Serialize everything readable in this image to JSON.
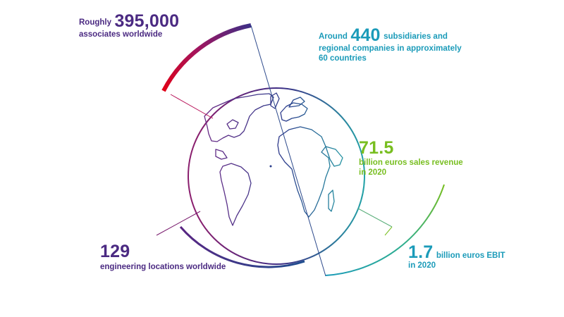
{
  "stats": {
    "associates": {
      "prefix": "Roughly",
      "value": "395,000",
      "caption": "associates worldwide"
    },
    "subsidiaries": {
      "prefix": "Around",
      "value": "440",
      "suffix": "subsidiaries and",
      "line2": "regional companies in approximately",
      "line3": "60 countries"
    },
    "revenue": {
      "value": "71.5",
      "line1": "billion euros sales revenue",
      "line2": "in 2020"
    },
    "ebit": {
      "value": "1.7",
      "suffix": "billion euros EBIT",
      "line2": "in 2020"
    },
    "engineering": {
      "value": "129",
      "caption": "engineering locations worldwide"
    }
  },
  "colors": {
    "purple": "#4b2a82",
    "magenta": "#b8145a",
    "red": "#e20015",
    "blue": "#18837e",
    "teal": "#1b9bb9",
    "green": "#78be20"
  },
  "globe": {
    "icon": "world-globe-icon"
  }
}
